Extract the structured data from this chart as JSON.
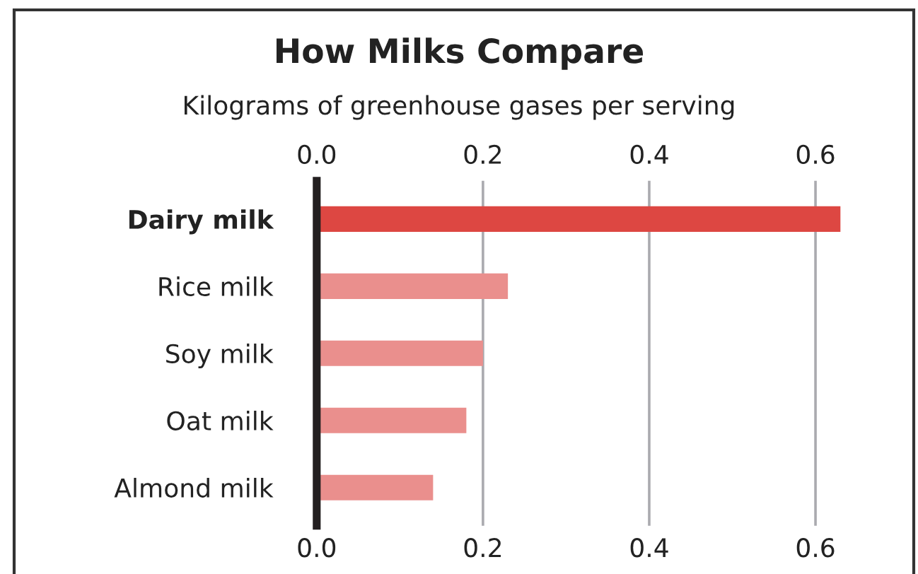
{
  "chart_data": {
    "type": "bar",
    "orientation": "horizontal",
    "title": "How Milks Compare",
    "subtitle": "Kilograms of greenhouse gases per serving",
    "categories": [
      "Dairy milk",
      "Rice milk",
      "Soy milk",
      "Oat milk",
      "Almond milk"
    ],
    "values": [
      0.63,
      0.23,
      0.2,
      0.18,
      0.14
    ],
    "colors": [
      "#dd4742",
      "#ea8f8d",
      "#ea8f8d",
      "#ea8f8d",
      "#ea8f8d"
    ],
    "xlim": [
      0,
      0.72
    ],
    "xticks": [
      {
        "value": 0,
        "label": "0.0"
      },
      {
        "value": 0.2,
        "label": "0.2"
      },
      {
        "value": 0.4,
        "label": "0.4"
      },
      {
        "value": 0.6,
        "label": "0.6"
      }
    ],
    "x2lim": [
      0,
      0.72
    ],
    "x2ticks": [
      {
        "value": 0,
        "label": "0.0"
      },
      {
        "value": 0.2,
        "label": "0.2"
      },
      {
        "value": 0.4,
        "label": "0.4"
      },
      {
        "value": 0.6,
        "label": "0.6"
      }
    ],
    "grid": "x"
  }
}
